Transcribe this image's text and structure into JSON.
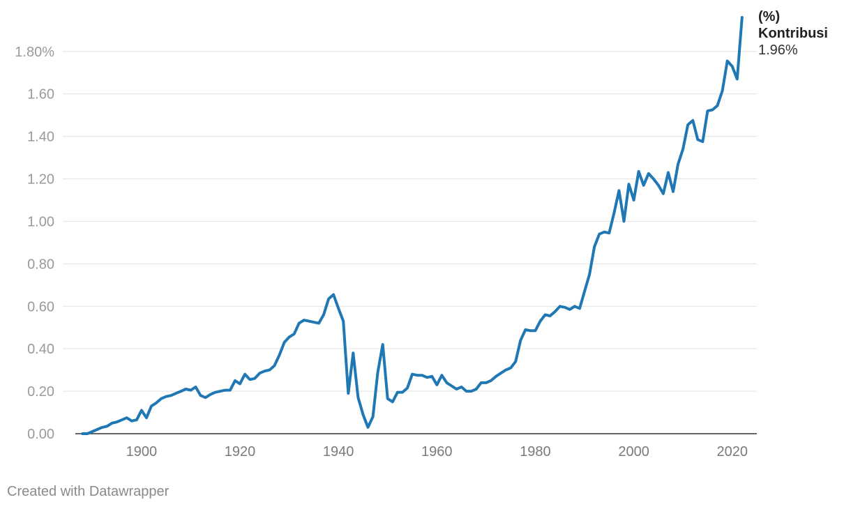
{
  "chart_data": {
    "type": "line",
    "x_ticks": [
      1900,
      1920,
      1940,
      1960,
      1980,
      2000,
      2020
    ],
    "y_ticks": [
      0.0,
      0.2,
      0.4,
      0.6,
      0.8,
      1.0,
      1.2,
      1.4,
      1.6,
      1.8
    ],
    "y_tick_labels": [
      "0.00",
      "0.20",
      "0.40",
      "0.60",
      "0.80",
      "1.00",
      "1.20",
      "1.40",
      "1.60",
      "1.80%"
    ],
    "xlim": [
      1884,
      2025
    ],
    "ylim": [
      0,
      1.97
    ],
    "grid": true,
    "series": [
      {
        "name": "(%) Kontribusi",
        "color": "#1f77b4",
        "end_label": "1.96%",
        "x": [
          1888,
          1889,
          1890,
          1891,
          1892,
          1893,
          1894,
          1895,
          1896,
          1897,
          1898,
          1899,
          1900,
          1901,
          1902,
          1903,
          1904,
          1905,
          1906,
          1907,
          1908,
          1909,
          1910,
          1911,
          1912,
          1913,
          1914,
          1915,
          1916,
          1917,
          1918,
          1919,
          1920,
          1921,
          1922,
          1923,
          1924,
          1925,
          1926,
          1927,
          1928,
          1929,
          1930,
          1931,
          1932,
          1933,
          1934,
          1935,
          1936,
          1937,
          1938,
          1939,
          1940,
          1941,
          1942,
          1943,
          1944,
          1945,
          1946,
          1947,
          1948,
          1949,
          1950,
          1951,
          1952,
          1953,
          1954,
          1955,
          1956,
          1957,
          1958,
          1959,
          1960,
          1961,
          1962,
          1963,
          1964,
          1965,
          1966,
          1967,
          1968,
          1969,
          1970,
          1971,
          1972,
          1973,
          1974,
          1975,
          1976,
          1977,
          1978,
          1979,
          1980,
          1981,
          1982,
          1983,
          1984,
          1985,
          1986,
          1987,
          1988,
          1989,
          1990,
          1991,
          1992,
          1993,
          1994,
          1995,
          1996,
          1997,
          1998,
          1999,
          2000,
          2001,
          2002,
          2003,
          2004,
          2005,
          2006,
          2007,
          2008,
          2009,
          2010,
          2011,
          2012,
          2013,
          2014,
          2015,
          2016,
          2017,
          2018,
          2019,
          2020,
          2021,
          2022
        ],
        "values": [
          0.0,
          0.0,
          0.01,
          0.02,
          0.03,
          0.035,
          0.05,
          0.055,
          0.065,
          0.075,
          0.06,
          0.065,
          0.11,
          0.075,
          0.13,
          0.145,
          0.165,
          0.175,
          0.18,
          0.19,
          0.2,
          0.21,
          0.205,
          0.22,
          0.18,
          0.17,
          0.185,
          0.195,
          0.2,
          0.205,
          0.205,
          0.25,
          0.235,
          0.28,
          0.255,
          0.26,
          0.285,
          0.295,
          0.3,
          0.32,
          0.37,
          0.43,
          0.455,
          0.47,
          0.52,
          0.535,
          0.53,
          0.525,
          0.52,
          0.56,
          0.635,
          0.655,
          0.59,
          0.53,
          0.19,
          0.38,
          0.17,
          0.09,
          0.03,
          0.08,
          0.29,
          0.42,
          0.165,
          0.15,
          0.195,
          0.195,
          0.215,
          0.28,
          0.275,
          0.275,
          0.265,
          0.27,
          0.23,
          0.275,
          0.24,
          0.225,
          0.21,
          0.22,
          0.2,
          0.2,
          0.21,
          0.24,
          0.24,
          0.25,
          0.27,
          0.285,
          0.3,
          0.31,
          0.34,
          0.44,
          0.49,
          0.485,
          0.485,
          0.53,
          0.56,
          0.555,
          0.575,
          0.6,
          0.595,
          0.585,
          0.6,
          0.59,
          0.67,
          0.75,
          0.88,
          0.94,
          0.95,
          0.945,
          1.04,
          1.145,
          1.0,
          1.175,
          1.1,
          1.235,
          1.17,
          1.225,
          1.2,
          1.17,
          1.13,
          1.23,
          1.14,
          1.27,
          1.34,
          1.455,
          1.475,
          1.385,
          1.375,
          1.52,
          1.525,
          1.545,
          1.615,
          1.755,
          1.73,
          1.67,
          1.96
        ]
      }
    ]
  },
  "footer": {
    "credit": "Created with Datawrapper"
  }
}
